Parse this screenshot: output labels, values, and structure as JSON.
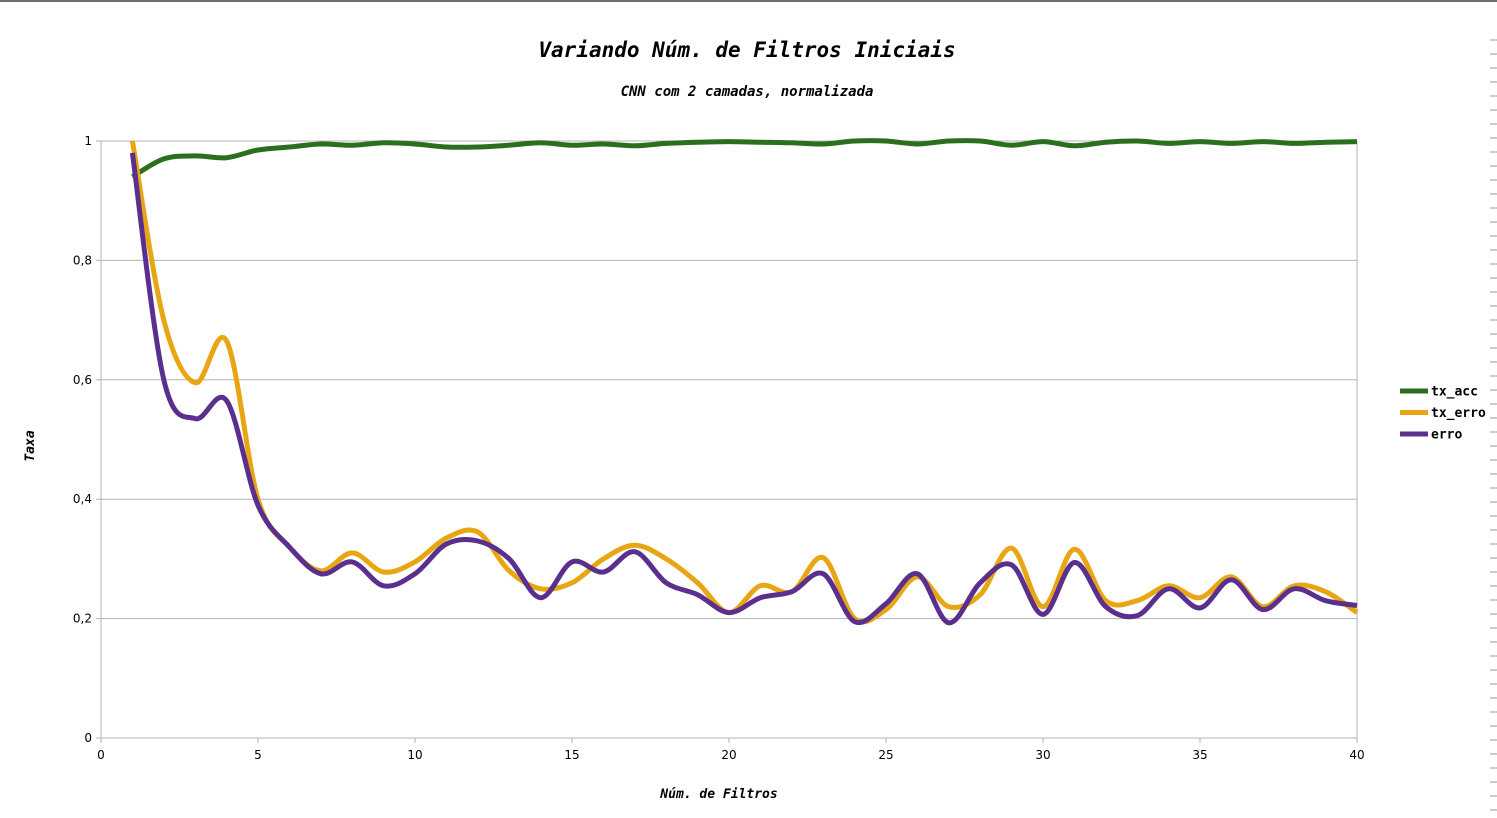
{
  "chart_data": {
    "type": "line",
    "title": "Variando Núm. de Filtros Iniciais",
    "subtitle": "CNN com 2 camadas, normalizada",
    "xlabel": "Núm. de Filtros",
    "ylabel": "Taxa",
    "xlim": [
      0,
      40
    ],
    "ylim": [
      0,
      1
    ],
    "xticks": [
      0,
      5,
      10,
      15,
      20,
      25,
      30,
      35,
      40
    ],
    "xtick_labels": [
      "0",
      "5",
      "10",
      "15",
      "20",
      "25",
      "30",
      "35",
      "40"
    ],
    "yticks": [
      0,
      0.2,
      0.4,
      0.6,
      0.8,
      1
    ],
    "ytick_labels": [
      "0",
      "0,2",
      "0,4",
      "0,6",
      "0,8",
      "1"
    ],
    "grid": "horizontal",
    "legend_position": "right",
    "x": [
      1,
      2,
      3,
      4,
      5,
      6,
      7,
      8,
      9,
      10,
      11,
      12,
      13,
      14,
      15,
      16,
      17,
      18,
      19,
      20,
      21,
      22,
      23,
      24,
      25,
      26,
      27,
      28,
      29,
      30,
      31,
      32,
      33,
      34,
      35,
      36,
      37,
      38,
      39,
      40
    ],
    "series": [
      {
        "name": "tx_acc",
        "color": "#2a6e1e",
        "values": [
          0.94,
          0.97,
          0.975,
          0.972,
          0.985,
          0.99,
          0.995,
          0.993,
          0.997,
          0.995,
          0.99,
          0.99,
          0.993,
          0.997,
          0.993,
          0.995,
          0.992,
          0.996,
          0.998,
          0.999,
          0.998,
          0.997,
          0.995,
          1.0,
          1.0,
          0.995,
          1.0,
          1.0,
          0.993,
          0.999,
          0.992,
          0.998,
          1.0,
          0.996,
          0.999,
          0.996,
          0.999,
          0.996,
          0.998,
          0.999
        ]
      },
      {
        "name": "tx_erro",
        "color": "#e8a612",
        "values": [
          1.0,
          0.7,
          0.595,
          0.665,
          0.4,
          0.32,
          0.28,
          0.31,
          0.278,
          0.295,
          0.335,
          0.345,
          0.28,
          0.25,
          0.26,
          0.3,
          0.323,
          0.3,
          0.26,
          0.21,
          0.255,
          0.245,
          0.302,
          0.2,
          0.215,
          0.27,
          0.22,
          0.24,
          0.318,
          0.22,
          0.316,
          0.23,
          0.23,
          0.255,
          0.235,
          0.27,
          0.22,
          0.255,
          0.245,
          0.21
        ]
      },
      {
        "name": "erro",
        "color": "#5a2f8e",
        "values": [
          0.98,
          0.6,
          0.535,
          0.565,
          0.39,
          0.32,
          0.275,
          0.295,
          0.255,
          0.275,
          0.325,
          0.33,
          0.3,
          0.235,
          0.295,
          0.278,
          0.312,
          0.26,
          0.24,
          0.21,
          0.235,
          0.245,
          0.275,
          0.195,
          0.225,
          0.275,
          0.193,
          0.26,
          0.29,
          0.207,
          0.294,
          0.22,
          0.205,
          0.25,
          0.218,
          0.265,
          0.215,
          0.25,
          0.23,
          0.222
        ]
      }
    ]
  }
}
